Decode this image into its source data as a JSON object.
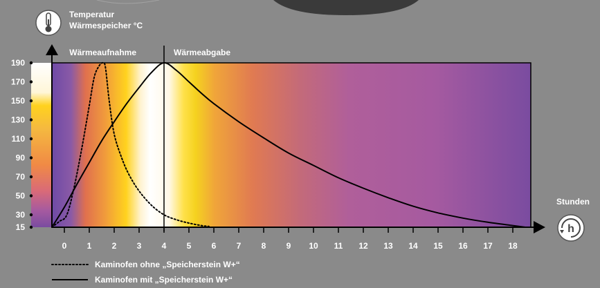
{
  "chart_data": {
    "type": "line",
    "title": "",
    "ylabel_line1": "Temperatur",
    "ylabel_line2": "Wärmespeicher °C",
    "xlabel": "Stunden",
    "phase_left": "Wärmeaufnahme",
    "phase_right": "Wärmeabgabe",
    "phase_divider_x": 4,
    "y_ticks": [
      15,
      30,
      50,
      70,
      90,
      110,
      130,
      150,
      170,
      190
    ],
    "x_ticks": [
      0,
      1,
      2,
      3,
      4,
      5,
      6,
      7,
      8,
      9,
      10,
      11,
      12,
      13,
      14,
      15,
      16,
      17,
      18
    ],
    "xlim": [
      -0.6,
      18.6
    ],
    "ylim": [
      15,
      190
    ],
    "series": [
      {
        "name": "Kaminofen ohne „Speicherstein W+“",
        "style": "dotted",
        "x": [
          -0.5,
          -0.2,
          0.1,
          0.4,
          0.7,
          1.0,
          1.2,
          1.4,
          1.55,
          1.65,
          1.8,
          2.0,
          2.3,
          2.6,
          3.0,
          3.5,
          4.0,
          4.5,
          5.0,
          5.5,
          5.8
        ],
        "y": [
          15,
          22,
          30,
          60,
          100,
          145,
          175,
          187,
          190,
          185,
          150,
          115,
          90,
          72,
          55,
          40,
          30,
          24,
          20,
          17,
          16
        ]
      },
      {
        "name": "Kaminofen mit „Speicherstein W+“",
        "style": "solid",
        "x": [
          -0.5,
          0,
          0.5,
          1,
          1.5,
          2,
          2.5,
          3,
          3.5,
          4,
          4.5,
          5,
          5.5,
          6,
          7,
          8,
          9,
          10,
          11,
          12,
          13,
          14,
          15,
          16,
          17,
          18,
          18.5
        ],
        "y": [
          15,
          38,
          62,
          85,
          108,
          128,
          147,
          164,
          180,
          190,
          182,
          170,
          158,
          147,
          128,
          111,
          95,
          82,
          69,
          58,
          48,
          39,
          32,
          26,
          21,
          17,
          15
        ]
      }
    ]
  }
}
